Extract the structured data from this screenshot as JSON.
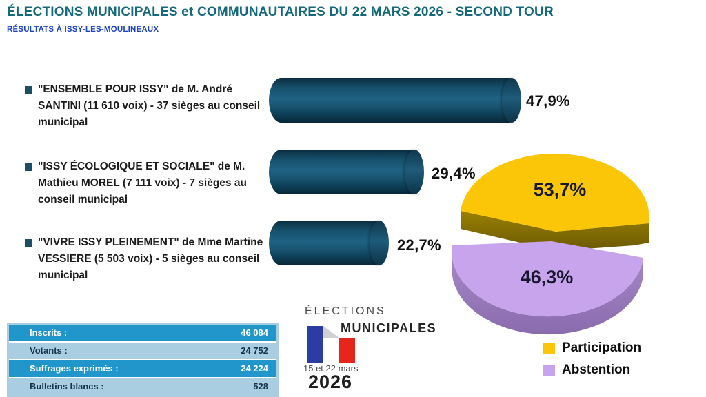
{
  "header": {
    "title": "ÉLECTIONS MUNICIPALES et COMMUNAUTAIRES DU 22 MARS 2026 - SECOND TOUR",
    "subtitle": "RÉSULTATS À ISSY-LES-MOULINEAUX"
  },
  "chart_data": [
    {
      "type": "bar",
      "orientation": "horizontal",
      "categories": [
        "\"ENSEMBLE POUR ISSY\" de M. André SANTINI (11 610 voix) - 37 sièges au conseil municipal",
        "\"ISSY ÉCOLOGIQUE ET SOCIALE\" de M. Mathieu MOREL (7 111 voix) - 7 sièges au conseil municipal",
        "\"VIVRE ISSY PLEINEMENT\" de Mme Martine VESSIERE (5 503 voix) - 5 sièges au conseil municipal"
      ],
      "values": [
        47.9,
        29.4,
        22.7
      ],
      "value_labels": [
        "47,9%",
        "29,4%",
        "22,7%"
      ],
      "votes": [
        11610,
        7111,
        5503
      ],
      "seats": [
        37,
        7,
        5
      ],
      "bar_color": "#17506B",
      "xlim": [
        0,
        100
      ],
      "grid": false
    },
    {
      "type": "pie",
      "style": "3d-exploded",
      "labels": [
        "Participation",
        "Abstention"
      ],
      "values": [
        53.7,
        46.3
      ],
      "value_labels": [
        "53,7%",
        "46,3%"
      ],
      "colors": [
        "#FBC608",
        "#C8A4ED"
      ],
      "side_colors": [
        "#857002",
        "#9678B8"
      ],
      "legend_position": "bottom-right"
    },
    {
      "type": "table",
      "rows": [
        {
          "label": "Inscrits :",
          "value": "46 084"
        },
        {
          "label": "Votants :",
          "value": "24 752"
        },
        {
          "label": "Suffrages exprimés :",
          "value": "24 224"
        },
        {
          "label": "Bulletins blancs :",
          "value": "528"
        }
      ],
      "colors": {
        "row_dark": "#2196CB",
        "row_light": "#A9CEE1"
      }
    }
  ],
  "logo": {
    "line1": "ÉLECTIONS",
    "line2": "MUNICIPALES",
    "dates": "15 et 22 mars",
    "year": "2026",
    "flag_colors": [
      "#2B3D9E",
      "#FFFFFF",
      "#E6251D"
    ]
  },
  "accent_colors": {
    "title": "#15697C",
    "subtitle": "#1D43C9",
    "bullet": "#1B4F66"
  }
}
